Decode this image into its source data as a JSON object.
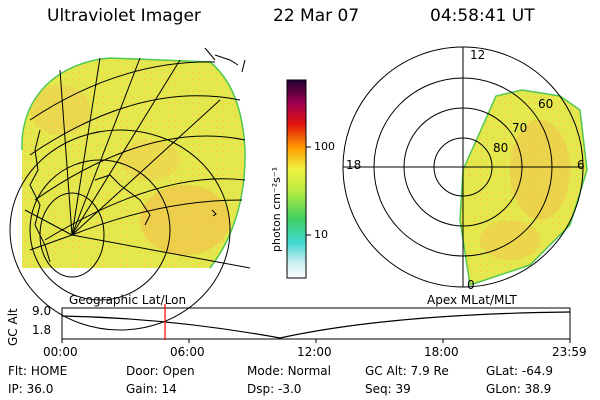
{
  "header": {
    "instrument": "Ultraviolet Imager",
    "date": "22 Mar 07",
    "time": "04:58:41 UT"
  },
  "colorbar": {
    "unit_label": "photon cm⁻²s⁻¹",
    "ticks": [
      "100",
      "10"
    ]
  },
  "polar_plot": {
    "mlt_labels": [
      "12",
      "18",
      "6",
      "0"
    ],
    "lat_labels": [
      "60",
      "70",
      "80"
    ]
  },
  "panel_labels": {
    "left": "Geographic Lat/Lon",
    "right": "Apex MLat/MLT"
  },
  "altitude_plot": {
    "ylabel": "GC Alt",
    "yticks": [
      "9.0",
      "1.8"
    ],
    "xticks": [
      "00:00",
      "06:00",
      "12:00",
      "18:00",
      "23:59"
    ],
    "current_time_marker": "04:58"
  },
  "status": {
    "row1": [
      {
        "label": "Flt:",
        "value": "HOME"
      },
      {
        "label": "Door:",
        "value": "Open"
      },
      {
        "label": "Mode:",
        "value": "Normal"
      },
      {
        "label": "GC Alt:",
        "value": "7.9 Re"
      },
      {
        "label": "GLat:",
        "value": "-64.9"
      }
    ],
    "row2": [
      {
        "label": "IP:",
        "value": "36.0"
      },
      {
        "label": "Gain:",
        "value": "14"
      },
      {
        "label": "Dsp:",
        "value": "-3.0"
      },
      {
        "label": "Seq:",
        "value": "39"
      },
      {
        "label": "GLon:",
        "value": "38.9"
      }
    ]
  },
  "colors": {
    "marker": "#ff0000",
    "image_fill": "#e6e84a"
  }
}
